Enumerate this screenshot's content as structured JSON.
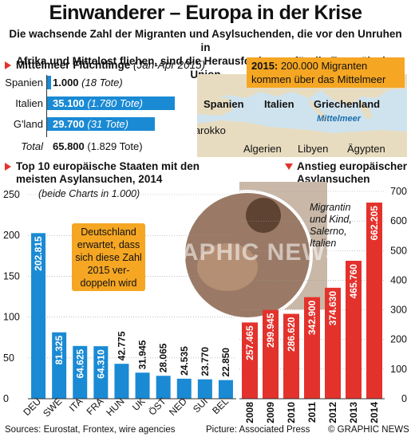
{
  "header": {
    "title": "Einwanderer – Europa in der Krise",
    "subtitle_line1": "Die wachsende Zahl der Migranten und Asylsuchenden, die vor den Unruhen in",
    "subtitle_line2": "Afrika und Mittelost fliehen, sind die Herausforderung für die Europäische Union"
  },
  "med": {
    "heading": "Mittelmeer Flüchtlinge",
    "period": "(Jan-Apr 2015)",
    "rows": [
      {
        "country": "Spanien",
        "value": "1.000",
        "deaths": "(18 Tote)",
        "num": 1000
      },
      {
        "country": "Italien",
        "value": "35.100",
        "deaths": "(1.780 Tote)",
        "num": 35100
      },
      {
        "country": "G'land",
        "value": "29.700",
        "deaths": "(31 Tote)",
        "num": 29700
      }
    ],
    "total_label": "Total",
    "total_value": "65.800",
    "total_deaths": "(1.829 Tote)"
  },
  "map": {
    "callout_year": "2015:",
    "callout_text1": " 200.000 Migranten",
    "callout_text2": "kommen über das Mittelmeer",
    "labels": {
      "spanien": "Spanien",
      "italien": "Italien",
      "griechenland": "Griechenland",
      "mittelmeer": "Mittelmeer",
      "marokko": "Marokko",
      "algerien": "Algerien",
      "libyen": "Libyen",
      "aegypten": "Ägypten"
    }
  },
  "left_chart_head": {
    "line1": "Top 10 europäische Staaten mit den",
    "line2": "meisten Asylansuchen, 2014",
    "note": "(beide Charts in 1.000)"
  },
  "right_chart_head": {
    "line1": "Anstieg europäischer",
    "line2": "Asylansuchen"
  },
  "annotation": {
    "line1": "Deutschland",
    "line2": "erwartet, dass",
    "line3": "sich diese Zahl",
    "line4": "2015 ver-",
    "line5": "doppeln wird"
  },
  "photo_caption": {
    "line1": "Migrantin",
    "line2": "und Kind,",
    "line3": "Salerno,",
    "line4": "Italien"
  },
  "watermark": "GRAPHIC NEWS",
  "footer": {
    "sources": "Sources: Eurostat, Frontex, wire agencies",
    "picture": "Picture: Associated Press",
    "credit": "© GRAPHIC NEWS"
  },
  "colors": {
    "blue": "#1a8ad4",
    "red": "#e3322c",
    "orange": "#f5a623",
    "sea": "#cfe3ee",
    "land": "#e8dcc0"
  },
  "chart_data": [
    {
      "type": "bar",
      "title": "Top 10 europäische Staaten mit den meisten Asylansuchen, 2014",
      "categories": [
        "DEU",
        "SWE",
        "ITA",
        "FRA",
        "HUN",
        "UK",
        "ÖST",
        "NED",
        "SUI",
        "BEL"
      ],
      "values": [
        202.815,
        81.325,
        64.625,
        64.31,
        42.775,
        31.945,
        28.065,
        24.535,
        23.77,
        22.85
      ],
      "value_labels": [
        "202.815",
        "81.325",
        "64.625",
        "64.310",
        "42.775",
        "31.945",
        "28.065",
        "24.535",
        "23.770",
        "22.850"
      ],
      "ylim": [
        0,
        250
      ],
      "yticks": [
        "0",
        "50",
        "100",
        "150",
        "200",
        "250"
      ]
    },
    {
      "type": "bar",
      "title": "Anstieg europäischer Asylansuchen",
      "categories": [
        "2008",
        "2009",
        "2010",
        "2011",
        "2012",
        "2013",
        "2014"
      ],
      "values": [
        257.465,
        299.945,
        286.62,
        342.9,
        374.63,
        465.76,
        662.205
      ],
      "value_labels": [
        "257.465",
        "299.945",
        "286.620",
        "342.900",
        "374.630",
        "465.760",
        "662.205"
      ],
      "ylim": [
        0,
        700
      ],
      "yticks": [
        "0",
        "100",
        "200",
        "300",
        "400",
        "500",
        "600",
        "700"
      ]
    }
  ]
}
